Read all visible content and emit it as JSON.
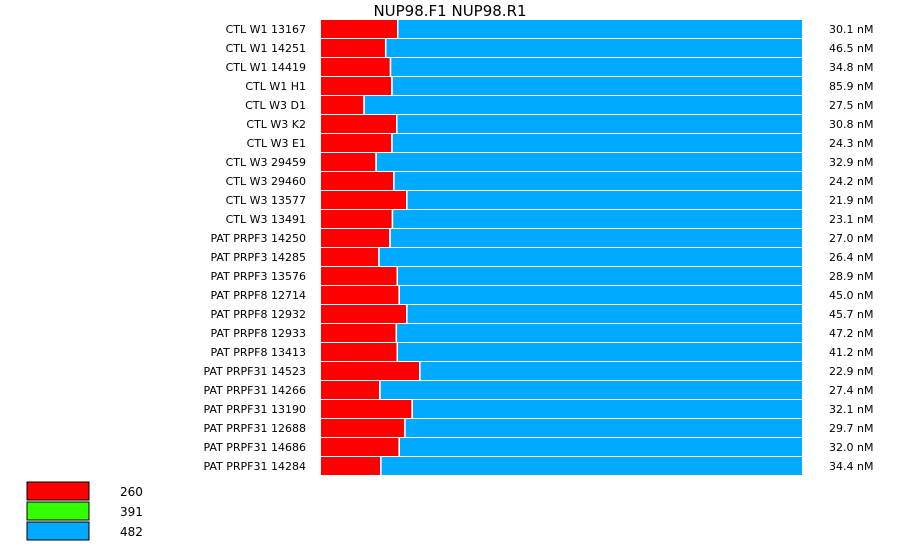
{
  "chart_data": {
    "type": "bar",
    "stacked": true,
    "normalized": true,
    "title": "NUP98.F1  NUP98.R1",
    "categories": [
      "CTL W1 13167",
      "CTL W1 14251",
      "CTL W1 14419",
      "CTL W1 H1",
      "CTL W3 D1",
      "CTL W3 K2",
      "CTL W3 E1",
      "CTL W3 29459",
      "CTL W3 29460",
      "CTL W3 13577",
      "CTL W3 13491",
      "PAT PRPF3 14250",
      "PAT PRPF3 14285",
      "PAT PRPF3 13576",
      "PAT PRPF8 12714",
      "PAT PRPF8 12932",
      "PAT PRPF8 12933",
      "PAT PRPF8 13413",
      "PAT PRPF31 14523",
      "PAT PRPF31 14266",
      "PAT PRPF31 13190",
      "PAT PRPF31 12688",
      "PAT PRPF31 14686",
      "PAT PRPF31 14284"
    ],
    "series": [
      {
        "name": "260",
        "color": "#ff0000",
        "values": [
          0.158,
          0.133,
          0.143,
          0.146,
          0.088,
          0.156,
          0.146,
          0.113,
          0.15,
          0.177,
          0.147,
          0.142,
          0.119,
          0.157,
          0.161,
          0.177,
          0.155,
          0.157,
          0.204,
          0.121,
          0.188,
          0.173,
          0.161,
          0.123
        ]
      },
      {
        "name": "391",
        "color": "#33ff00",
        "values": [
          0,
          0,
          0,
          0,
          0,
          0,
          0,
          0,
          0,
          0,
          0,
          0,
          0,
          0,
          0,
          0,
          0,
          0,
          0,
          0,
          0,
          0,
          0,
          0
        ]
      },
      {
        "name": "482",
        "color": "#00aaff",
        "values": [
          0.842,
          0.867,
          0.857,
          0.854,
          0.912,
          0.844,
          0.854,
          0.887,
          0.85,
          0.823,
          0.853,
          0.858,
          0.881,
          0.843,
          0.839,
          0.823,
          0.845,
          0.843,
          0.796,
          0.879,
          0.812,
          0.827,
          0.839,
          0.877
        ]
      }
    ],
    "row_values": [
      "30.1 nM",
      "46.5 nM",
      "34.8 nM",
      "85.9 nM",
      "27.5 nM",
      "30.8 nM",
      "24.3 nM",
      "32.9 nM",
      "24.2 nM",
      "21.9 nM",
      "23.1 nM",
      "27.0 nM",
      "26.4 nM",
      "28.9 nM",
      "45.0 nM",
      "45.7 nM",
      "47.2 nM",
      "41.2 nM",
      "22.9 nM",
      "27.4 nM",
      "32.1 nM",
      "29.7 nM",
      "32.0 nM",
      "34.4 nM"
    ],
    "legend": [
      {
        "label": "260",
        "color": "#ff0000"
      },
      {
        "label": "391",
        "color": "#33ff00"
      },
      {
        "label": "482",
        "color": "#00aaff"
      }
    ],
    "legend_position": "bottom-left",
    "grid": false
  }
}
